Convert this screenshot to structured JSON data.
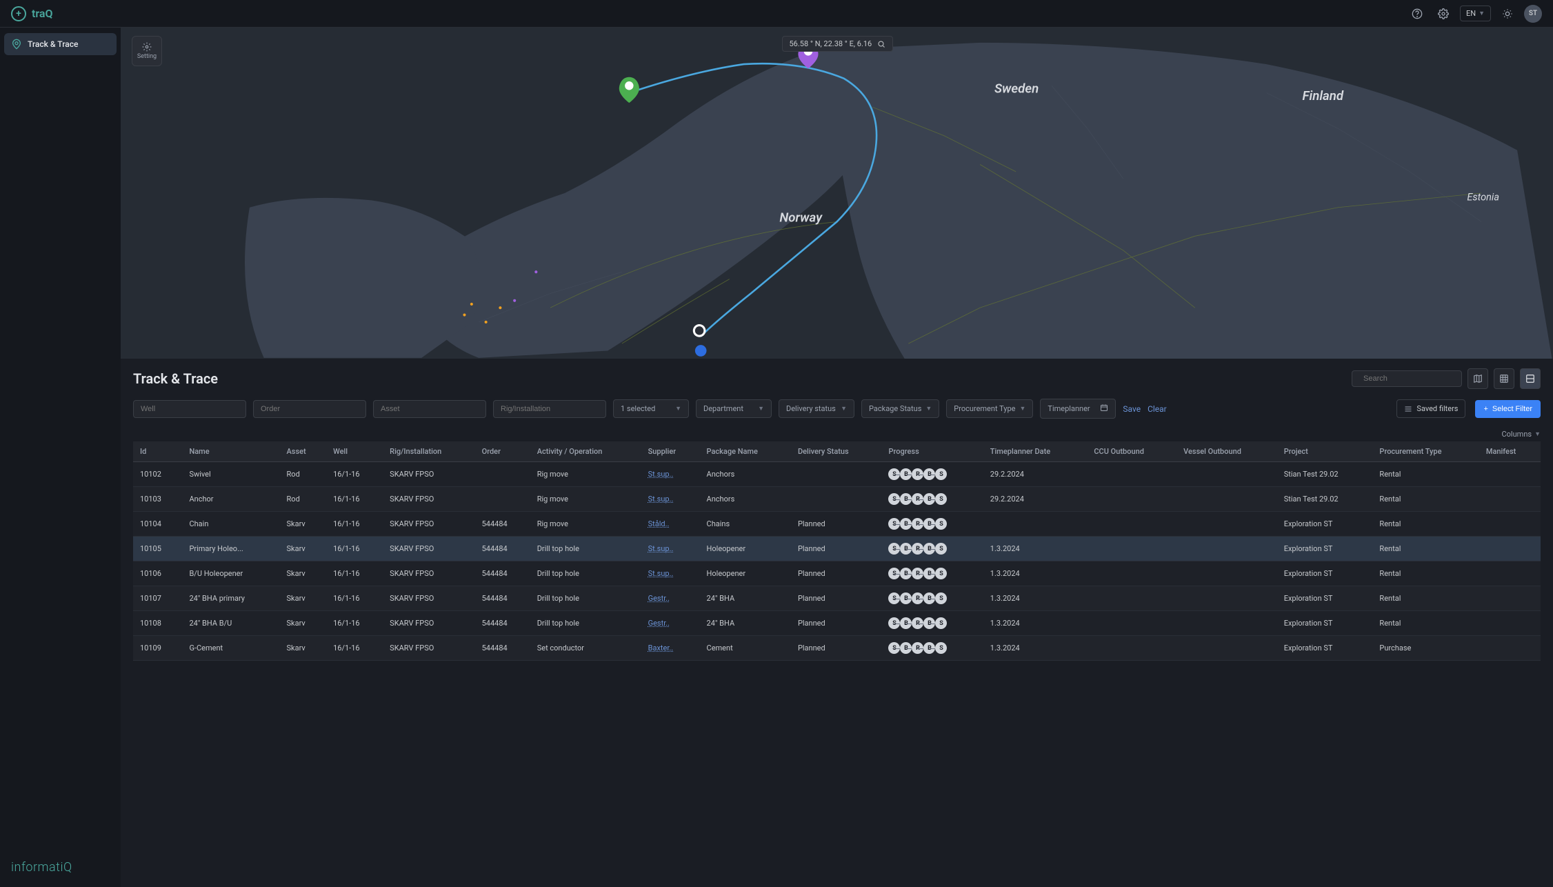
{
  "brand": "traQ",
  "footer_brand": "informatiQ",
  "header": {
    "lang": "EN",
    "avatar": "ST"
  },
  "sidebar": {
    "items": [
      {
        "label": "Track & Trace"
      }
    ]
  },
  "map": {
    "setting_label": "Setting",
    "coords": "56.58 ° N, 22.38 ° E, 6.16",
    "labels": {
      "norway": "Norway",
      "sweden": "Sweden",
      "finland": "Finland",
      "estonia": "Estonia"
    },
    "colors": {
      "land": "#3a4250",
      "water": "#262c34",
      "road": "#7a8a3a",
      "road2": "#4a5260",
      "route": "#4aa8e0",
      "marker1": "#f0a020",
      "marker2": "#a060e0"
    }
  },
  "section": {
    "title": "Track & Trace",
    "search_placeholder": "Search",
    "columns_label": "Columns"
  },
  "filters": {
    "inputs": [
      "Well",
      "Order",
      "Asset",
      "Rig/Installation"
    ],
    "selects": [
      {
        "label": "1 selected"
      },
      {
        "label": "Department"
      },
      {
        "label": "Delivery status"
      },
      {
        "label": "Package Status"
      },
      {
        "label": "Procurement Type"
      },
      {
        "label": "Timeplanner",
        "icon": "calendar"
      }
    ],
    "save": "Save",
    "clear": "Clear",
    "saved_filters": "Saved filters",
    "select_filter": "Select Filter"
  },
  "table": {
    "columns": [
      "Id",
      "Name",
      "Asset",
      "Well",
      "Rig/Installation",
      "Order",
      "Activity / Operation",
      "Supplier",
      "Package Name",
      "Delivery Status",
      "Progress",
      "Timeplanner Date",
      "CCU Outbound",
      "Vessel Outbound",
      "Project",
      "Procurement Type",
      "Manifest"
    ],
    "progress_steps": [
      "S",
      "B",
      "R",
      "B",
      "S"
    ],
    "rows": [
      {
        "id": "10102",
        "name": "Swivel",
        "asset": "Rod",
        "well": "16/1-16",
        "rig": "SKARV FPSO",
        "order": "",
        "activity": "Rig move",
        "supplier": "St.sup..",
        "package": "Anchors",
        "dstatus": "",
        "date": "29.2.2024",
        "ccu": "",
        "vessel": "",
        "project": "Stian Test 29.02",
        "ptype": "Rental",
        "manifest": ""
      },
      {
        "id": "10103",
        "name": "Anchor",
        "asset": "Rod",
        "well": "16/1-16",
        "rig": "SKARV FPSO",
        "order": "",
        "activity": "Rig move",
        "supplier": "St.sup..",
        "package": "Anchors",
        "dstatus": "",
        "date": "29.2.2024",
        "ccu": "",
        "vessel": "",
        "project": "Stian Test 29.02",
        "ptype": "Rental",
        "manifest": ""
      },
      {
        "id": "10104",
        "name": "Chain",
        "asset": "Skarv",
        "well": "16/1-16",
        "rig": "SKARV FPSO",
        "order": "544484",
        "activity": "Rig move",
        "supplier": "Ståld..",
        "package": "Chains",
        "dstatus": "Planned",
        "date": "",
        "ccu": "",
        "vessel": "",
        "project": "Exploration ST",
        "ptype": "Rental",
        "manifest": ""
      },
      {
        "id": "10105",
        "name": "Primary Holeo...",
        "asset": "Skarv",
        "well": "16/1-16",
        "rig": "SKARV FPSO",
        "order": "544484",
        "activity": "Drill top hole",
        "supplier": "St.sup..",
        "package": "Holeopener",
        "dstatus": "Planned",
        "date": "1.3.2024",
        "ccu": "",
        "vessel": "",
        "project": "Exploration ST",
        "ptype": "Rental",
        "manifest": "",
        "selected": true
      },
      {
        "id": "10106",
        "name": "B/U Holeopener",
        "asset": "Skarv",
        "well": "16/1-16",
        "rig": "SKARV FPSO",
        "order": "544484",
        "activity": "Drill top hole",
        "supplier": "St.sup..",
        "package": "Holeopener",
        "dstatus": "Planned",
        "date": "1.3.2024",
        "ccu": "",
        "vessel": "",
        "project": "Exploration ST",
        "ptype": "Rental",
        "manifest": ""
      },
      {
        "id": "10107",
        "name": "24\" BHA primary",
        "asset": "Skarv",
        "well": "16/1-16",
        "rig": "SKARV FPSO",
        "order": "544484",
        "activity": "Drill top hole",
        "supplier": "Gestr..",
        "package": "24\" BHA",
        "dstatus": "Planned",
        "date": "1.3.2024",
        "ccu": "",
        "vessel": "",
        "project": "Exploration ST",
        "ptype": "Rental",
        "manifest": ""
      },
      {
        "id": "10108",
        "name": "24\" BHA B/U",
        "asset": "Skarv",
        "well": "16/1-16",
        "rig": "SKARV FPSO",
        "order": "544484",
        "activity": "Drill top hole",
        "supplier": "Gestr..",
        "package": "24\" BHA",
        "dstatus": "Planned",
        "date": "1.3.2024",
        "ccu": "",
        "vessel": "",
        "project": "Exploration ST",
        "ptype": "Rental",
        "manifest": ""
      },
      {
        "id": "10109",
        "name": "G-Cement",
        "asset": "Skarv",
        "well": "16/1-16",
        "rig": "SKARV FPSO",
        "order": "544484",
        "activity": "Set conductor",
        "supplier": "Baxter..",
        "package": "Cement",
        "dstatus": "Planned",
        "date": "1.3.2024",
        "ccu": "",
        "vessel": "",
        "project": "Exploration ST",
        "ptype": "Purchase",
        "manifest": ""
      }
    ]
  }
}
